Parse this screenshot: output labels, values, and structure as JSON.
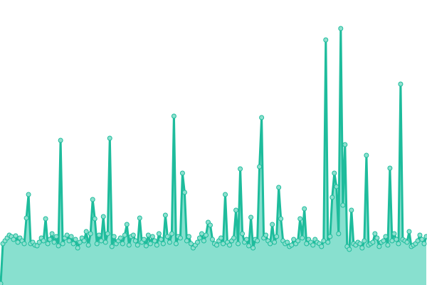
{
  "chart_data": {
    "type": "area",
    "title": "",
    "xlabel": "",
    "ylabel": "",
    "ylim": [
      0,
      400
    ],
    "grid": false,
    "legend": "none",
    "markers": true,
    "colors": {
      "line": "#1ebc9c",
      "fill": "#88e0cf",
      "marker_fill": "#8ee0cf",
      "marker_stroke": "#1ebc9c"
    },
    "values": [
      2,
      58,
      62,
      66,
      70,
      68,
      64,
      69,
      60,
      66,
      62,
      58,
      94,
      127,
      58,
      60,
      56,
      55,
      60,
      66,
      62,
      93,
      58,
      64,
      72,
      60,
      68,
      55,
      203,
      58,
      66,
      70,
      62,
      68,
      58,
      64,
      52,
      60,
      66,
      62,
      75,
      56,
      72,
      120,
      93,
      58,
      70,
      62,
      96,
      60,
      72,
      206,
      54,
      68,
      58,
      62,
      66,
      58,
      70,
      85,
      56,
      68,
      70,
      62,
      56,
      94,
      60,
      64,
      55,
      70,
      58,
      68,
      62,
      56,
      72,
      64,
      58,
      98,
      68,
      60,
      72,
      237,
      58,
      68,
      66,
      157,
      130,
      62,
      68,
      58,
      52,
      56,
      60,
      66,
      72,
      62,
      70,
      88,
      84,
      64,
      58,
      56,
      62,
      66,
      58,
      127,
      60,
      56,
      62,
      66,
      105,
      58,
      163,
      72,
      60,
      64,
      55,
      95,
      52,
      64,
      62,
      166,
      235,
      66,
      70,
      62,
      58,
      85,
      60,
      68,
      137,
      93,
      62,
      58,
      60,
      54,
      56,
      64,
      58,
      62,
      93,
      66,
      107,
      58,
      64,
      60,
      56,
      64,
      60,
      58,
      54,
      62,
      344,
      60,
      68,
      123,
      157,
      138,
      72,
      360,
      112,
      197,
      54,
      50,
      105,
      58,
      56,
      60,
      58,
      52,
      62,
      182,
      56,
      58,
      60,
      72,
      66,
      54,
      60,
      62,
      68,
      56,
      164,
      62,
      72,
      64,
      58,
      282,
      64,
      62,
      60,
      75,
      54,
      56,
      58,
      62,
      70,
      64,
      58,
      68
    ]
  }
}
